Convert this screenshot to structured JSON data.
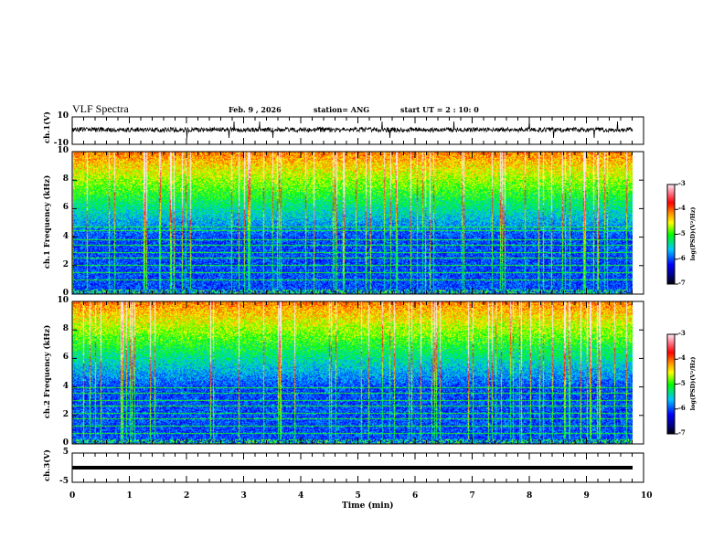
{
  "header": {
    "title": "VLF Spectra",
    "date": "Feb. 9 , 2026",
    "station": "station= ANG",
    "start": "start  UT =   2 : 10: 0"
  },
  "colors": {
    "trace": "#000000",
    "background": "#ffffff"
  },
  "chart_data": [
    {
      "type": "line",
      "name": "ch1-waveform",
      "ylabel": "ch.1(V)",
      "ylim": [
        -10,
        10
      ],
      "yticks": [
        "10",
        "-10"
      ],
      "xlim": [
        0,
        10
      ],
      "description_values": {
        "baseline": 0,
        "noise_amplitude": 1.5
      }
    },
    {
      "type": "heatmap",
      "name": "ch1-spectrogram",
      "ylabel": "ch.1  Frequency (kHz)",
      "ylim": [
        0,
        10
      ],
      "yticks": [
        "0",
        "2",
        "4",
        "6",
        "8",
        "10"
      ],
      "xlim": [
        0,
        10
      ],
      "data_end_min": 9.8,
      "colorbar": {
        "label": "log(PSD)(V²/Hz)",
        "range": [
          -7,
          -3
        ],
        "ticks": [
          "-3",
          "-4",
          "-5",
          "-6",
          "-7"
        ]
      }
    },
    {
      "type": "heatmap",
      "name": "ch2-spectrogram",
      "ylabel": "ch.2  Frequency (kHz)",
      "ylim": [
        0,
        10
      ],
      "yticks": [
        "0",
        "2",
        "4",
        "6",
        "8",
        "10"
      ],
      "xlim": [
        0,
        10
      ],
      "data_end_min": 9.8,
      "colorbar": {
        "label": "log(PSD)(V²/Hz)",
        "range": [
          -7,
          -3
        ],
        "ticks": [
          "-3",
          "-4",
          "-5",
          "-6",
          "-7"
        ]
      }
    },
    {
      "type": "line",
      "name": "ch3-waveform",
      "ylabel": "ch.3(V)",
      "ylim": [
        -5,
        5
      ],
      "yticks": [
        "5",
        "-5"
      ],
      "xlim": [
        0,
        10
      ],
      "description_values": {
        "constant": -1.2
      }
    }
  ],
  "xaxis": {
    "label": "Time  (min)",
    "ticks": [
      "0",
      "1",
      "2",
      "3",
      "4",
      "5",
      "6",
      "7",
      "8",
      "9",
      "10"
    ]
  }
}
